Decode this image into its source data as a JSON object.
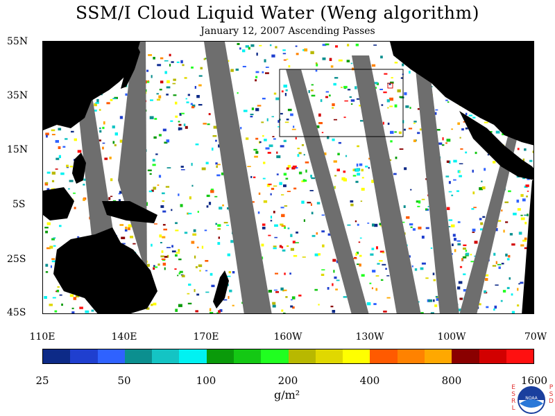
{
  "title": "SSM/I Cloud Liquid Water (Weng algorithm)",
  "subtitle": "January 12, 2007  Ascending Passes",
  "lat_ticks": [
    "55N",
    "35N",
    "15N",
    "5S",
    "25S",
    "45S"
  ],
  "lon_ticks": [
    "110E",
    "140E",
    "170E",
    "160W",
    "130W",
    "100W",
    "70W"
  ],
  "colorbar": {
    "labels": [
      "25",
      "50",
      "100",
      "200",
      "400",
      "800",
      "1600"
    ],
    "colors": [
      "#0d2a87",
      "#1f3fcf",
      "#2f62ff",
      "#0b8f8f",
      "#14c4c4",
      "#00f2f2",
      "#0a9a0a",
      "#14c814",
      "#20ff20",
      "#b8b800",
      "#e0d800",
      "#ffff00",
      "#ff5a00",
      "#ff8200",
      "#ffa800",
      "#8a0000",
      "#d20000",
      "#ff1010"
    ],
    "units": "g/m²"
  },
  "logo": {
    "text": "NOAA",
    "left_letters": "ESRL",
    "right_letters": "PSD"
  },
  "colors": {
    "land": "#000000",
    "swath_gap": "#6e6e6e",
    "ocean_clear": "#ffffff"
  }
}
